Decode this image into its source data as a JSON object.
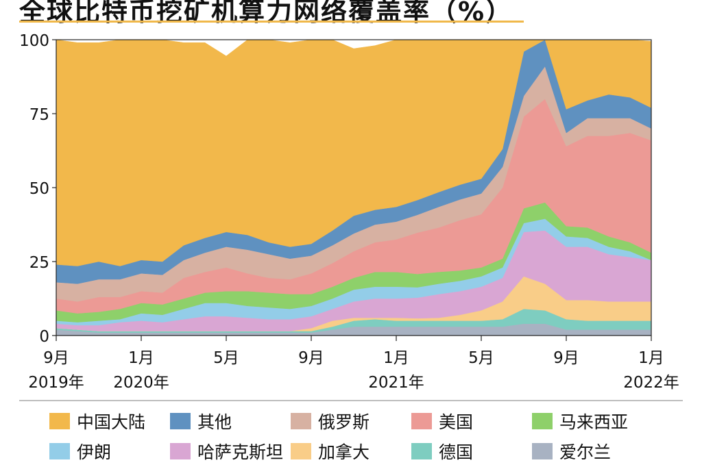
{
  "title": "全球比特币挖矿机算力网络覆盖率（%）",
  "chart_data": {
    "type": "area",
    "stacked": true,
    "title": "全球比特币挖矿机算力网络覆盖率（%）",
    "ylim": [
      0,
      100
    ],
    "y_ticks": [
      "0",
      "25",
      "50",
      "75",
      "100"
    ],
    "y_tick_values": [
      0,
      25,
      50,
      75,
      100
    ],
    "x": [
      "2019-09",
      "2019-10",
      "2019-11",
      "2019-12",
      "2020-01",
      "2020-02",
      "2020-03",
      "2020-04",
      "2020-05",
      "2020-06",
      "2020-07",
      "2020-08",
      "2020-09",
      "2020-10",
      "2020-11",
      "2020-12",
      "2021-01",
      "2021-02",
      "2021-03",
      "2021-04",
      "2021-05",
      "2021-06",
      "2021-07",
      "2021-08",
      "2021-09",
      "2021-10",
      "2021-11",
      "2021-12",
      "2022-01"
    ],
    "x_ticks": [
      {
        "index": 0,
        "month": "9月",
        "year": "2019年"
      },
      {
        "index": 4,
        "month": "1月",
        "year": "2020年"
      },
      {
        "index": 8,
        "month": "5月",
        "year": ""
      },
      {
        "index": 12,
        "month": "9月",
        "year": ""
      },
      {
        "index": 16,
        "month": "1月",
        "year": "2021年"
      },
      {
        "index": 20,
        "month": "5月",
        "year": ""
      },
      {
        "index": 24,
        "month": "9月",
        "year": ""
      },
      {
        "index": 28,
        "month": "1月",
        "year": "2022年"
      }
    ],
    "series": [
      {
        "name": "爱尔兰",
        "color": "#a8b2c2",
        "values": [
          2,
          1.5,
          1,
          1,
          1,
          1,
          1,
          1,
          1,
          1,
          1,
          1,
          1,
          2,
          3,
          3,
          3,
          3,
          3,
          3,
          3,
          3,
          4,
          4,
          2,
          2,
          2,
          2,
          2
        ]
      },
      {
        "name": "德国",
        "color": "#7ecdc0",
        "values": [
          0.5,
          0.5,
          0.5,
          0.5,
          0.5,
          0.5,
          0.5,
          0.5,
          0.5,
          0.5,
          0.5,
          0.5,
          0.5,
          1,
          2,
          2.5,
          2,
          2,
          2,
          2,
          2,
          2.5,
          5,
          4.5,
          3.5,
          3,
          3,
          3,
          3
        ]
      },
      {
        "name": "加拿大",
        "color": "#f9cd88",
        "values": [
          0,
          0,
          0,
          0,
          0,
          0,
          0,
          0,
          0,
          0,
          0,
          0,
          1,
          2,
          1,
          0.5,
          1,
          0.8,
          1,
          2,
          3.5,
          6,
          11,
          9,
          6.5,
          7,
          6.5,
          6.5,
          6.5
        ]
      },
      {
        "name": "哈萨克斯坦",
        "color": "#d9a6d3",
        "values": [
          1.5,
          1.5,
          2,
          3,
          3.5,
          3,
          4,
          5,
          5,
          4.5,
          4,
          4,
          4,
          4,
          5.5,
          6.5,
          6.5,
          7,
          8,
          8,
          8,
          8,
          15,
          18,
          18,
          18,
          16,
          15,
          14
        ]
      },
      {
        "name": "伊朗",
        "color": "#93cde8",
        "values": [
          1,
          1,
          1.5,
          1,
          2.5,
          2.5,
          3.5,
          4.5,
          4.5,
          4,
          4,
          3.5,
          3.5,
          3.5,
          4,
          4,
          4,
          3.5,
          3.5,
          3.5,
          3.5,
          3.5,
          3,
          4,
          3.5,
          3,
          2.5,
          2,
          0
        ]
      },
      {
        "name": "马来西亚",
        "color": "#8ed06a",
        "values": [
          3.5,
          3,
          3,
          3.5,
          3.5,
          3.5,
          3.5,
          3.5,
          4,
          5,
          5,
          5,
          4,
          4,
          4,
          5,
          5,
          4.5,
          4,
          3.5,
          3,
          3,
          5,
          5.5,
          3.5,
          3.5,
          3.5,
          3,
          2.5
        ]
      },
      {
        "name": "美国",
        "color": "#ec9a95",
        "values": [
          4,
          4,
          5,
          4,
          4,
          4,
          7,
          7,
          8,
          6,
          5,
          5,
          7,
          8,
          9,
          10,
          11,
          14,
          15,
          17,
          18,
          24,
          31,
          35,
          27,
          31,
          34,
          37,
          38
        ]
      },
      {
        "name": "俄罗斯",
        "color": "#d7b1a2",
        "values": [
          5.5,
          6,
          6,
          6,
          6,
          6,
          6,
          6.5,
          7,
          8,
          8,
          7,
          6,
          6,
          6,
          6,
          6,
          6,
          7,
          7,
          7,
          7,
          7,
          11,
          4.5,
          6,
          6,
          5,
          4
        ]
      },
      {
        "name": "其他",
        "color": "#5f91c0",
        "values": [
          6,
          6,
          6,
          4.5,
          4.5,
          4.5,
          5,
          5,
          5,
          5,
          4,
          4,
          4,
          5,
          6,
          5,
          5,
          5,
          5,
          5,
          5,
          6,
          15,
          10,
          8,
          6,
          8,
          7,
          7
        ]
      },
      {
        "name": "中国大陆",
        "color": "#f2b84b",
        "values": [
          76,
          75.5,
          74,
          76.5,
          75,
          75.5,
          68.5,
          66,
          59.5,
          66,
          68.5,
          69,
          69,
          64.5,
          56.5,
          55.5,
          56.5,
          54.2,
          51.5,
          49,
          47,
          37,
          4,
          1,
          23.5,
          20.5,
          18.5,
          19.5,
          22.5
        ]
      }
    ],
    "legend": [
      "中国大陆",
      "其他",
      "俄罗斯",
      "美国",
      "马来西亚",
      "伊朗",
      "哈萨克斯坦",
      "加拿大",
      "德国",
      "爱尔兰"
    ]
  }
}
